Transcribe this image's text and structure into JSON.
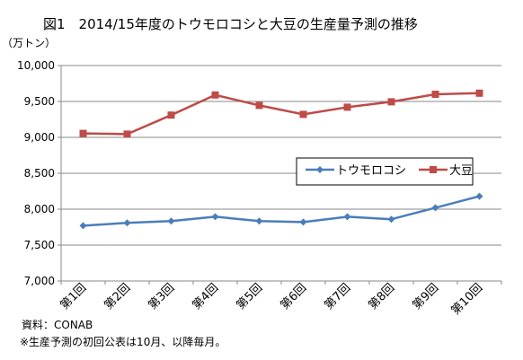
{
  "chart_data": {
    "type": "line",
    "title": "図1　2014/15年度のトウモロコシと大豆の生産量予測の推移",
    "unit_label": "（万トン）",
    "categories": [
      "第1回",
      "第2回",
      "第3回",
      "第4回",
      "第5回",
      "第6回",
      "第7回",
      "第8回",
      "第9回",
      "第10回"
    ],
    "series": [
      {
        "name": "トウモロコシ",
        "color": "#4a7ebb",
        "marker": "diamond",
        "values": [
          7770,
          7810,
          7835,
          7895,
          7835,
          7820,
          7895,
          7860,
          8020,
          8180
        ]
      },
      {
        "name": "大豆",
        "color": "#be4b48",
        "marker": "square",
        "values": [
          9055,
          9045,
          9310,
          9590,
          9445,
          9320,
          9420,
          9495,
          9600,
          9615
        ]
      }
    ],
    "ylim": [
      7000,
      10000
    ],
    "yticks": [
      "7,000",
      "7,500",
      "8,000",
      "8,500",
      "9,000",
      "9,500",
      "10,000"
    ],
    "grid": true,
    "legend_position": "right-middle"
  },
  "notes": {
    "source": "資料：CONAB",
    "footnote": "※生産予測の初回公表は10月、以降毎月。"
  }
}
